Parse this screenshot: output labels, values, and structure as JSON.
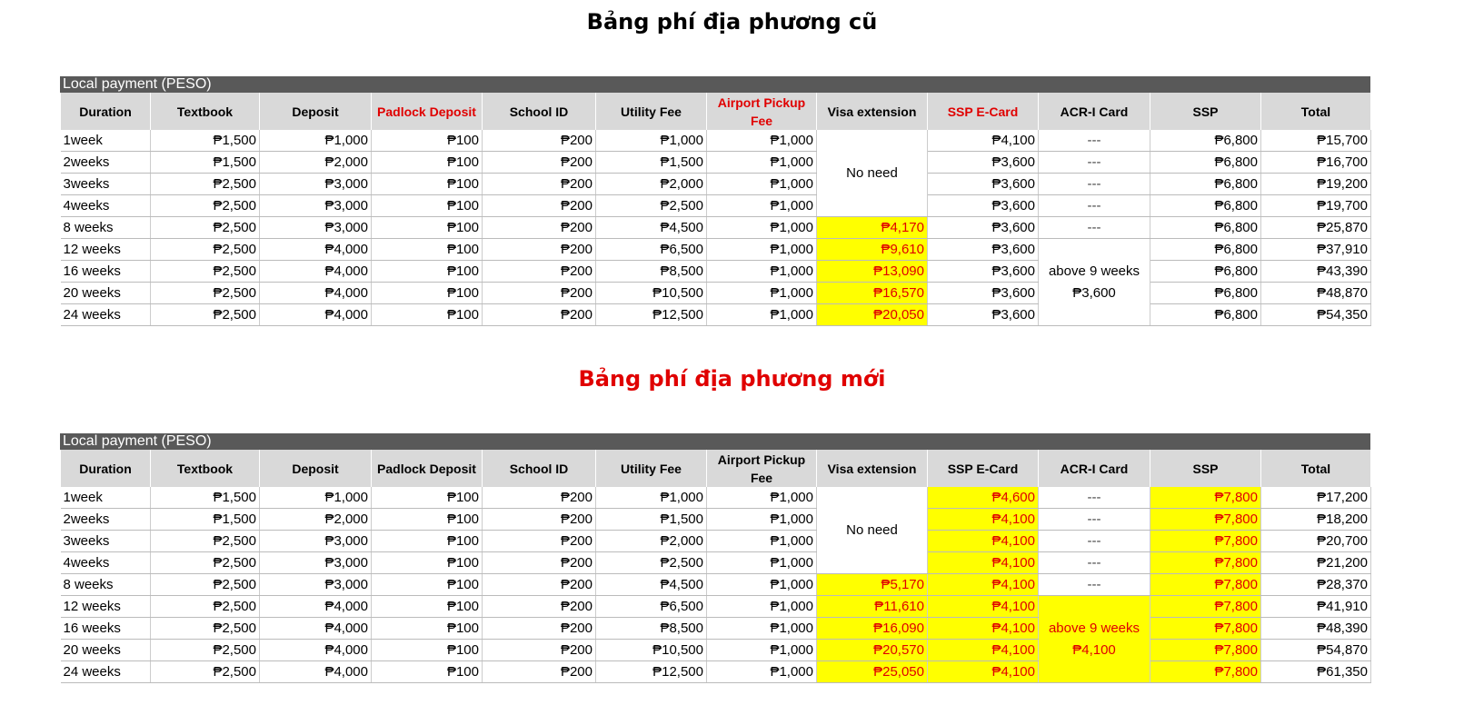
{
  "tables": [
    {
      "title": "Bảng phí địa phương cũ",
      "caption": "Local payment (PESO)",
      "headers": [
        "Duration",
        "Textbook",
        "Deposit",
        "Padlock Deposit",
        "School ID",
        "Utility Fee",
        "Airport Pickup Fee",
        "Visa extension",
        "SSP E-Card",
        "ACR-I Card",
        "SSP",
        "Total"
      ],
      "red_headers": [
        3,
        6,
        8
      ],
      "highlight_cols": [
        7
      ],
      "acr_highlight": false,
      "visa_merged": "No need",
      "acr_merged": "above 9 weeks ₱3,600",
      "rows": [
        [
          "1week",
          "₱1,500",
          "₱1,000",
          "₱100",
          "₱200",
          "₱1,000",
          "₱1,000",
          "",
          "₱4,100",
          "---",
          "₱6,800",
          "₱15,700"
        ],
        [
          "2weeks",
          "₱1,500",
          "₱2,000",
          "₱100",
          "₱200",
          "₱1,500",
          "₱1,000",
          "",
          "₱3,600",
          "---",
          "₱6,800",
          "₱16,700"
        ],
        [
          "3weeks",
          "₱2,500",
          "₱3,000",
          "₱100",
          "₱200",
          "₱2,000",
          "₱1,000",
          "",
          "₱3,600",
          "---",
          "₱6,800",
          "₱19,200"
        ],
        [
          "4weeks",
          "₱2,500",
          "₱3,000",
          "₱100",
          "₱200",
          "₱2,500",
          "₱1,000",
          "",
          "₱3,600",
          "---",
          "₱6,800",
          "₱19,700"
        ],
        [
          "8 weeks",
          "₱2,500",
          "₱3,000",
          "₱100",
          "₱200",
          "₱4,500",
          "₱1,000",
          "₱4,170",
          "₱3,600",
          "---",
          "₱6,800",
          "₱25,870"
        ],
        [
          "12 weeks",
          "₱2,500",
          "₱4,000",
          "₱100",
          "₱200",
          "₱6,500",
          "₱1,000",
          "₱9,610",
          "₱3,600",
          "",
          "₱6,800",
          "₱37,910"
        ],
        [
          "16 weeks",
          "₱2,500",
          "₱4,000",
          "₱100",
          "₱200",
          "₱8,500",
          "₱1,000",
          "₱13,090",
          "₱3,600",
          "",
          "₱6,800",
          "₱43,390"
        ],
        [
          "20 weeks",
          "₱2,500",
          "₱4,000",
          "₱100",
          "₱200",
          "₱10,500",
          "₱1,000",
          "₱16,570",
          "₱3,600",
          "",
          "₱6,800",
          "₱48,870"
        ],
        [
          "24 weeks",
          "₱2,500",
          "₱4,000",
          "₱100",
          "₱200",
          "₱12,500",
          "₱1,000",
          "₱20,050",
          "₱3,600",
          "",
          "₱6,800",
          "₱54,350"
        ]
      ]
    },
    {
      "title": "Bảng phí địa phương mới",
      "caption": "Local payment (PESO)",
      "headers": [
        "Duration",
        "Textbook",
        "Deposit",
        "Padlock Deposit",
        "School ID",
        "Utility Fee",
        "Airport Pickup Fee",
        "Visa extension",
        "SSP E-Card",
        "ACR-I Card",
        "SSP",
        "Total"
      ],
      "red_headers": [],
      "highlight_cols": [
        7,
        8,
        10
      ],
      "acr_highlight": true,
      "visa_merged": "No need",
      "acr_merged": "above 9 weeks ₱4,100",
      "rows": [
        [
          "1week",
          "₱1,500",
          "₱1,000",
          "₱100",
          "₱200",
          "₱1,000",
          "₱1,000",
          "",
          "₱4,600",
          "---",
          "₱7,800",
          "₱17,200"
        ],
        [
          "2weeks",
          "₱1,500",
          "₱2,000",
          "₱100",
          "₱200",
          "₱1,500",
          "₱1,000",
          "",
          "₱4,100",
          "---",
          "₱7,800",
          "₱18,200"
        ],
        [
          "3weeks",
          "₱2,500",
          "₱3,000",
          "₱100",
          "₱200",
          "₱2,000",
          "₱1,000",
          "",
          "₱4,100",
          "---",
          "₱7,800",
          "₱20,700"
        ],
        [
          "4weeks",
          "₱2,500",
          "₱3,000",
          "₱100",
          "₱200",
          "₱2,500",
          "₱1,000",
          "",
          "₱4,100",
          "---",
          "₱7,800",
          "₱21,200"
        ],
        [
          "8 weeks",
          "₱2,500",
          "₱3,000",
          "₱100",
          "₱200",
          "₱4,500",
          "₱1,000",
          "₱5,170",
          "₱4,100",
          "---",
          "₱7,800",
          "₱28,370"
        ],
        [
          "12 weeks",
          "₱2,500",
          "₱4,000",
          "₱100",
          "₱200",
          "₱6,500",
          "₱1,000",
          "₱11,610",
          "₱4,100",
          "",
          "₱7,800",
          "₱41,910"
        ],
        [
          "16 weeks",
          "₱2,500",
          "₱4,000",
          "₱100",
          "₱200",
          "₱8,500",
          "₱1,000",
          "₱16,090",
          "₱4,100",
          "",
          "₱7,800",
          "₱48,390"
        ],
        [
          "20 weeks",
          "₱2,500",
          "₱4,000",
          "₱100",
          "₱200",
          "₱10,500",
          "₱1,000",
          "₱20,570",
          "₱4,100",
          "",
          "₱7,800",
          "₱54,870"
        ],
        [
          "24 weeks",
          "₱2,500",
          "₱4,000",
          "₱100",
          "₱200",
          "₱12,500",
          "₱1,000",
          "₱25,050",
          "₱4,100",
          "",
          "₱7,800",
          "₱61,350"
        ]
      ]
    }
  ],
  "colors": {
    "highlight": "#ffff00",
    "red": "#e00000",
    "caption_bar": "#595959",
    "header_bg": "#d9d9d9"
  }
}
